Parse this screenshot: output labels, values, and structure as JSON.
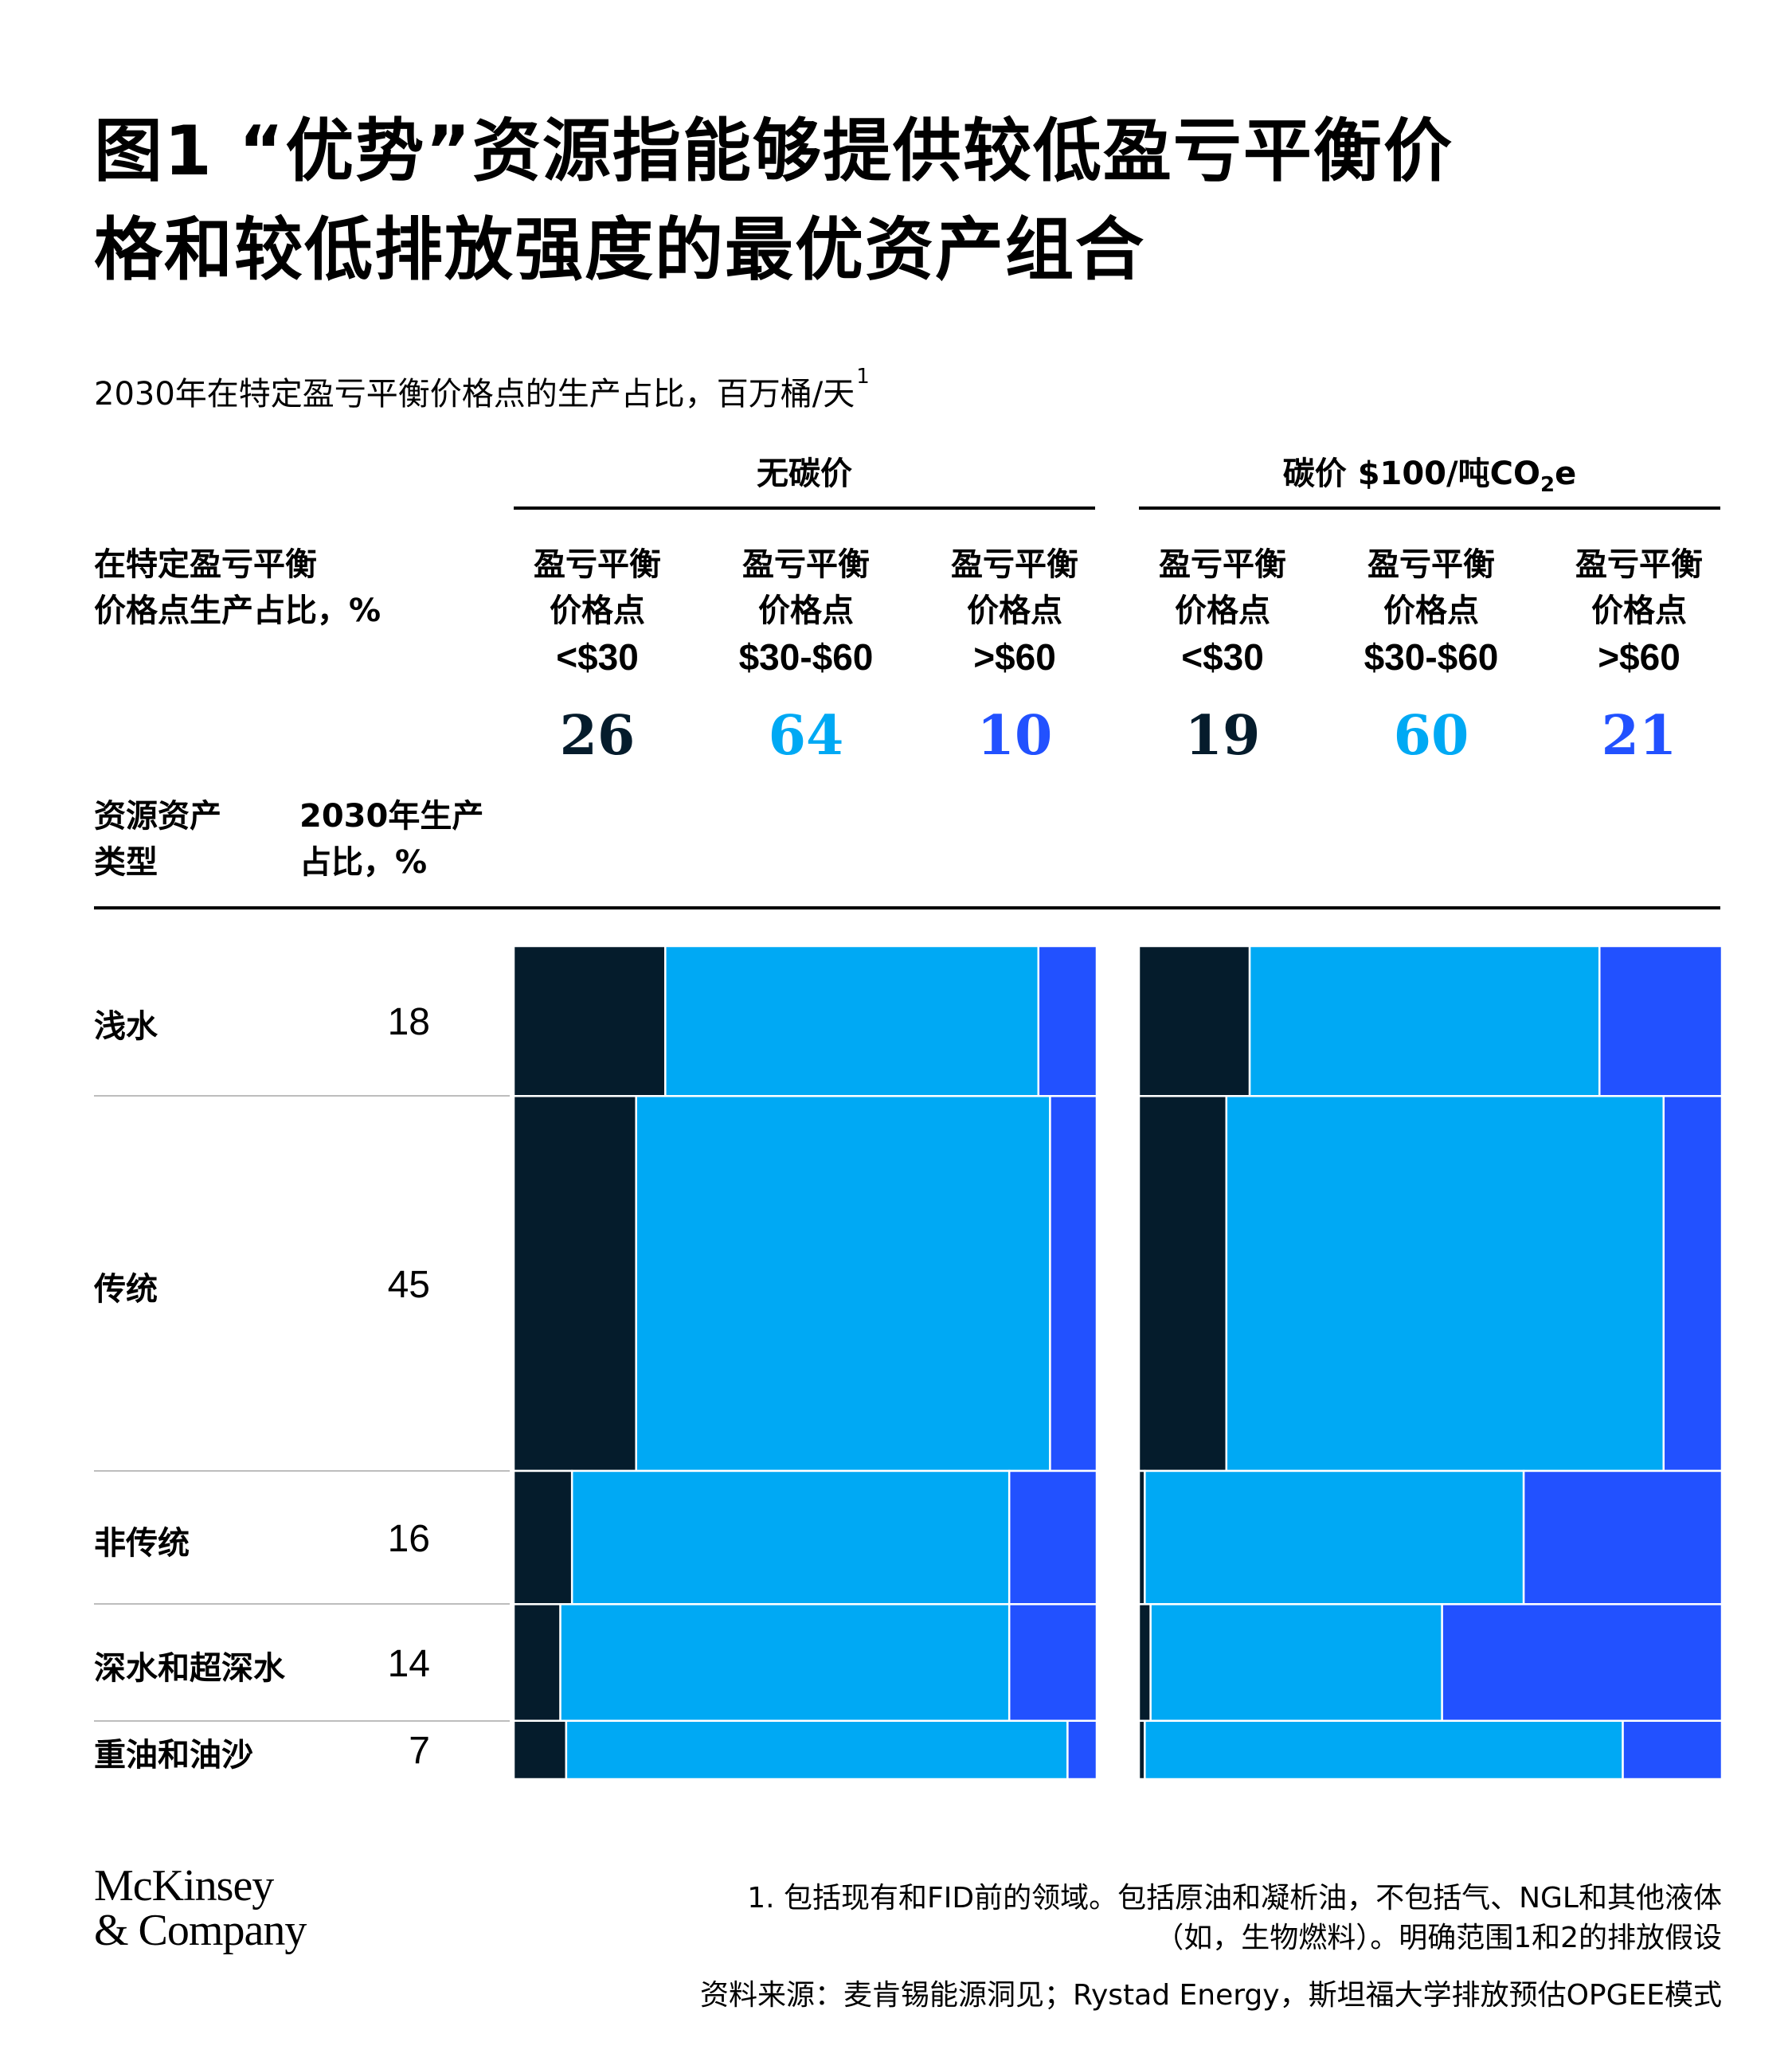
{
  "title": {
    "line1": "图1 “优势”资源指能够提供较低盈亏平衡价",
    "line2": "格和较低排放强度的最优资产组合"
  },
  "subtitle": {
    "text": "2030年在特定盈亏平衡价格点的生产占比，百万桶/天",
    "footnote_mark": "1"
  },
  "headers": {
    "share_label_line1": "在特定盈亏平衡",
    "share_label_line2": "价格点生产占比，%",
    "resource_label_line1": "资源资产",
    "resource_label_line2": "类型",
    "prod_label_line1": "2030年生产",
    "prod_label_line2": "占比，%"
  },
  "groups": [
    {
      "label": "无碳价",
      "columns": [
        {
          "line1": "盈亏平衡",
          "line2": "价格点",
          "price": "<$30",
          "share": "26",
          "color": "#051c2c"
        },
        {
          "line1": "盈亏平衡",
          "line2": "价格点",
          "price": "$30-$60",
          "share": "64",
          "color": "#00a9f4"
        },
        {
          "line1": "盈亏平衡",
          "line2": "价格点",
          "price": ">$60",
          "share": "10",
          "color": "#2251ff"
        }
      ]
    },
    {
      "label_main": "碳价 $100/吨CO",
      "label_sub": "2",
      "label_tail": "e",
      "columns": [
        {
          "line1": "盈亏平衡",
          "line2": "价格点",
          "price": "<$30",
          "share": "19",
          "color": "#051c2c"
        },
        {
          "line1": "盈亏平衡",
          "line2": "价格点",
          "price": "$30-$60",
          "share": "60",
          "color": "#00a9f4"
        },
        {
          "line1": "盈亏平衡",
          "line2": "价格点",
          "price": ">$60",
          "share": "21",
          "color": "#2251ff"
        }
      ]
    }
  ],
  "colors": {
    "dark": "#051c2c",
    "cyan": "#00a9f4",
    "blue": "#2251ff"
  },
  "chart_data": {
    "type": "bar",
    "subtype": "marimekko",
    "categories": [
      "浅水",
      "传统",
      "非传统",
      "深水和超深水",
      "重油和油沙"
    ],
    "category_share_pct": [
      18,
      45,
      16,
      14,
      7
    ],
    "panels": [
      {
        "name": "无碳价",
        "series": [
          {
            "name": "<$30",
            "values": [
              26,
              21,
              10,
              8,
              9
            ]
          },
          {
            "name": "$30-$60",
            "values": [
              64,
              71,
              75,
              77,
              86
            ]
          },
          {
            "name": ">$60",
            "values": [
              10,
              8,
              15,
              15,
              5
            ]
          }
        ]
      },
      {
        "name": "碳价 $100/吨CO2e",
        "series": [
          {
            "name": "<$30",
            "values": [
              19,
              15,
              1,
              2,
              1
            ]
          },
          {
            "name": "$30-$60",
            "values": [
              60,
              75,
              65,
              50,
              82
            ]
          },
          {
            "name": ">$60",
            "values": [
              21,
              10,
              34,
              48,
              17
            ]
          }
        ]
      }
    ]
  },
  "footer": {
    "logo_line1": "McKinsey",
    "logo_line2": "& Company",
    "note_line1": "1. 包括现有和FID前的领域。包括原油和凝析油，不包括气、NGL和其他液体",
    "note_line2": "（如，生物燃料）。明确范围1和2的排放假设",
    "source": "资料来源：麦肯锡能源洞见；Rystad Energy，斯坦福大学排放预估OPGEE模式"
  }
}
